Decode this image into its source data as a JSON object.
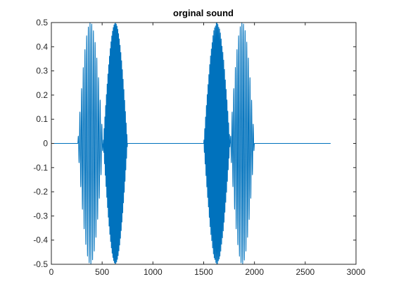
{
  "chart_data": {
    "type": "line",
    "title": "orginal sound",
    "xlabel": "",
    "ylabel": "",
    "xlim": [
      0,
      3000
    ],
    "ylim": [
      -0.5,
      0.5
    ],
    "xticks": [
      0,
      500,
      1000,
      1500,
      2000,
      2500,
      3000
    ],
    "yticks": [
      -0.5,
      -0.4,
      -0.3,
      -0.2,
      -0.1,
      0,
      0.1,
      0.2,
      0.3,
      0.4,
      0.5
    ],
    "xtick_labels": [
      "0",
      "500",
      "1000",
      "1500",
      "2000",
      "2500",
      "3000"
    ],
    "ytick_labels": [
      "-0.5",
      "-0.4",
      "-0.3",
      "-0.2",
      "-0.1",
      "0",
      "0.1",
      "0.2",
      "0.3",
      "0.4",
      "0.5"
    ],
    "grid": false,
    "series": [
      {
        "color": "#0072BD",
        "signal_range": [
          0,
          2750
        ],
        "bursts": [
          {
            "x_start": 260,
            "x_end": 510,
            "peak_amplitude": 0.5,
            "cycles": 15
          },
          {
            "x_start": 510,
            "x_end": 750,
            "peak_amplitude": 0.5,
            "cycles": 32
          },
          {
            "x_start": 1500,
            "x_end": 1760,
            "peak_amplitude": 0.5,
            "cycles": 32
          },
          {
            "x_start": 1760,
            "x_end": 2000,
            "peak_amplitude": 0.5,
            "cycles": 15
          }
        ]
      }
    ]
  }
}
